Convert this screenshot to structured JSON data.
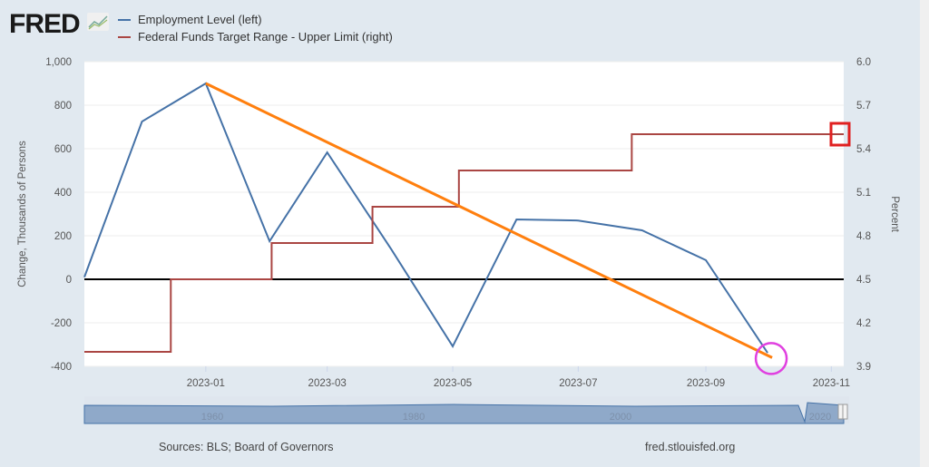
{
  "header": {
    "logo": "FRED",
    "legend": [
      {
        "label": "Employment Level (left)",
        "color": "#4572a7"
      },
      {
        "label": "Federal Funds Target Range - Upper Limit (right)",
        "color": "#aa4643"
      }
    ]
  },
  "footer": {
    "sources": "Sources: BLS; Board of Governors",
    "site": "fred.stlouisfed.org"
  },
  "navigator": {
    "labels": [
      "1960",
      "1980",
      "2000",
      "2020"
    ]
  },
  "chart_data": {
    "type": "line",
    "xlabel": "",
    "ylabel_left": "Change, Thousands of Persons",
    "ylabel_right": "Percent",
    "ylim_left": [
      -400,
      1000
    ],
    "ylim_right": [
      3.9,
      6.0
    ],
    "yticks_left": [
      "1,000",
      "800",
      "600",
      "400",
      "200",
      "0",
      "-200",
      "-400"
    ],
    "yticks_right": [
      "6.0",
      "5.7",
      "5.4",
      "5.1",
      "4.8",
      "4.5",
      "4.2",
      "3.9"
    ],
    "xticks": [
      "2023-01",
      "2023-03",
      "2023-05",
      "2023-07",
      "2023-09",
      "2023-11"
    ],
    "xrange": [
      "2022-11-03",
      "2023-11-07"
    ],
    "series": [
      {
        "name": "Employment Level (left)",
        "axis": "left",
        "color": "#4572a7",
        "x": [
          "2022-11-01",
          "2022-12-01",
          "2023-01-01",
          "2023-02-01",
          "2023-03-01",
          "2023-04-01",
          "2023-05-01",
          "2023-06-01",
          "2023-07-01",
          "2023-08-01",
          "2023-09-01",
          "2023-10-01"
        ],
        "values": [
          10,
          725,
          900,
          175,
          583,
          140,
          -308,
          275,
          270,
          225,
          88,
          -338
        ]
      },
      {
        "name": "Federal Funds Target Range - Upper Limit (right)",
        "axis": "right",
        "step": true,
        "color": "#aa4643",
        "x": [
          "2022-11-03",
          "2022-12-15",
          "2023-02-02",
          "2023-03-23",
          "2023-05-04",
          "2023-07-27",
          "2023-11-07"
        ],
        "values": [
          4.0,
          4.5,
          4.75,
          5.0,
          5.25,
          5.5,
          5.5
        ]
      }
    ],
    "annotations": [
      {
        "type": "arrow-line",
        "color": "#ff7f0e",
        "from": [
          "2023-01-01",
          900
        ],
        "to": [
          "2023-10-01",
          -360
        ]
      },
      {
        "type": "circle",
        "color": "#e040e0",
        "at": [
          "2023-10-01",
          -360
        ]
      },
      {
        "type": "square",
        "color": "#e02020",
        "at": [
          "2023-11-07",
          5.5
        ]
      }
    ]
  }
}
